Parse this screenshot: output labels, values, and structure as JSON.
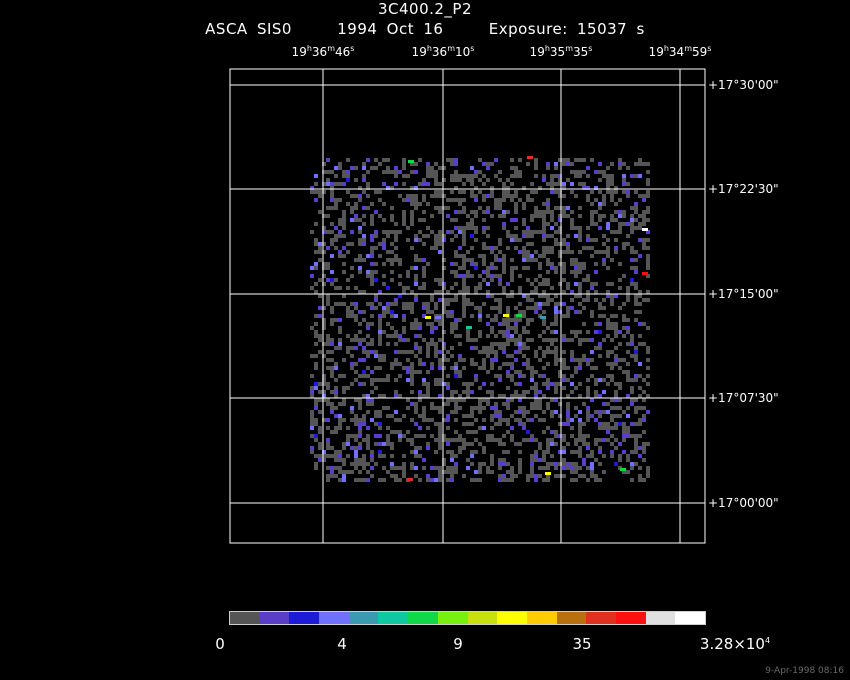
{
  "header": {
    "title": "3C400.2_P2",
    "instrument": "ASCA SIS0",
    "date": "1994 Oct 16",
    "exposure": "Exposure: 15037 s"
  },
  "ra_ticks": [
    {
      "h": "19",
      "m": "36",
      "s": "46"
    },
    {
      "h": "19",
      "m": "36",
      "s": "10"
    },
    {
      "h": "19",
      "m": "35",
      "s": "35"
    },
    {
      "h": "19",
      "m": "34",
      "s": "59"
    }
  ],
  "dec_ticks": [
    "+17°30'00\"",
    "+17°22'30\"",
    "+17°15'00\"",
    "+17°07'30\"",
    "+17°00'00\""
  ],
  "colorbar": {
    "colors": [
      "#555555",
      "#5a3ec8",
      "#1c1cd6",
      "#7070ff",
      "#3a9ab0",
      "#10c8a0",
      "#10d848",
      "#78f010",
      "#c8e010",
      "#ffff00",
      "#ffcc00",
      "#b87010",
      "#e03020",
      "#ff1010",
      "#e0e0e0",
      "#ffffff"
    ],
    "labels": [
      "0",
      "4",
      "9",
      "35"
    ],
    "max_label_mantissa": "3.28×10",
    "max_label_exp": "4"
  },
  "timestamp": "9-Apr-1998 08:16"
}
